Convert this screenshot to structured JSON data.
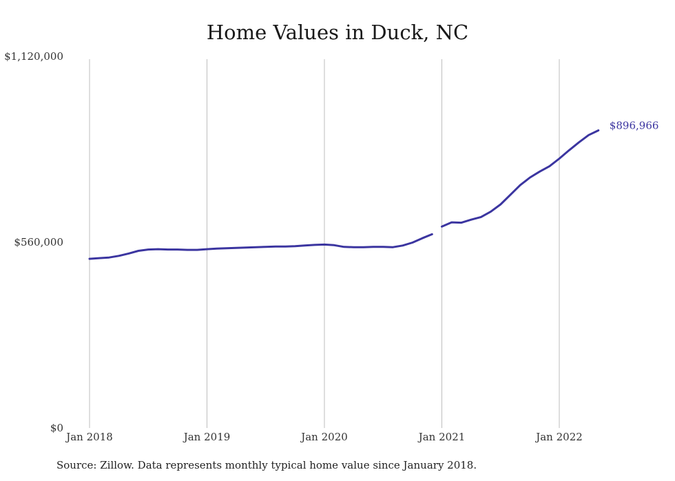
{
  "chart_data": {
    "type": "line",
    "title": "Home Values in Duck, NC",
    "xlabel": "",
    "ylabel": "",
    "ylim": [
      0,
      1120000
    ],
    "y_ticks": [
      "$0",
      "$560,000",
      "$1,120,000"
    ],
    "y_tick_values": [
      0,
      560000,
      1120000
    ],
    "x_ticks": [
      "Jan 2018",
      "Jan 2019",
      "Jan 2020",
      "Jan 2021",
      "Jan 2022"
    ],
    "x_tick_values": [
      "2018-01",
      "2019-01",
      "2020-01",
      "2021-01",
      "2022-01"
    ],
    "grid": "vertical lines at January of each year",
    "line_color": "#3b35a0",
    "series": [
      {
        "segments": [
          {
            "x": [
              "2018-01",
              "2018-02",
              "2018-03",
              "2018-04",
              "2018-05",
              "2018-06",
              "2018-07",
              "2018-08",
              "2018-09",
              "2018-10",
              "2018-11",
              "2018-12",
              "2019-01",
              "2019-02",
              "2019-03",
              "2019-04",
              "2019-05",
              "2019-06",
              "2019-07",
              "2019-08",
              "2019-09",
              "2019-10",
              "2019-11",
              "2019-12",
              "2020-01",
              "2020-02",
              "2020-03",
              "2020-04",
              "2020-05",
              "2020-06",
              "2020-07",
              "2020-08",
              "2020-09",
              "2020-10",
              "2020-11",
              "2020-12"
            ],
            "values": [
              510000,
              512000,
              514000,
              519000,
              526000,
              534000,
              538000,
              539000,
              538000,
              538000,
              537000,
              537000,
              539000,
              541000,
              542000,
              543000,
              544000,
              545000,
              546000,
              547000,
              547000,
              548000,
              550000,
              552000,
              553000,
              551000,
              546000,
              545000,
              545000,
              546000,
              546000,
              545000,
              550000,
              559000,
              572000,
              584000
            ]
          },
          {
            "x": [
              "2021-01",
              "2021-02",
              "2021-03",
              "2021-04",
              "2021-05",
              "2021-06",
              "2021-07",
              "2021-08",
              "2021-09",
              "2021-10",
              "2021-11",
              "2021-12",
              "2022-01",
              "2022-02",
              "2022-03",
              "2022-04",
              "2022-05",
              "2022-06"
            ],
            "values": [
              607000,
              620000,
              619000,
              628000,
              636000,
              652000,
              674000,
              703000,
              732000,
              755000,
              773000,
              789000,
              812000,
              837000,
              861000,
              883000,
              896966,
              null
            ]
          }
        ]
      }
    ],
    "end_label": "$896,966"
  },
  "footer": {
    "source": "Source: Zillow. Data represents monthly typical home value since January 2018."
  }
}
